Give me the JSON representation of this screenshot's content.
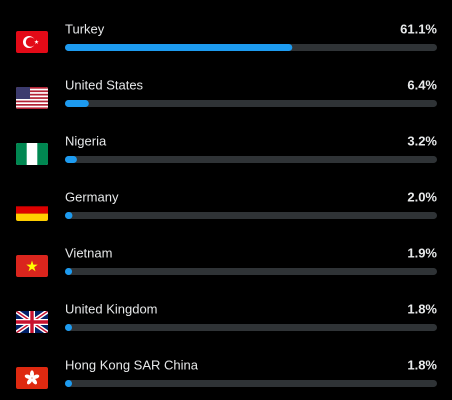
{
  "chart_data": {
    "type": "bar",
    "categories": [
      "Turkey",
      "United States",
      "Nigeria",
      "Germany",
      "Vietnam",
      "United Kingdom",
      "Hong Kong SAR China"
    ],
    "values": [
      61.1,
      6.4,
      3.2,
      2.0,
      1.9,
      1.8,
      1.8
    ],
    "value_labels": [
      "61.1%",
      "6.4%",
      "3.2%",
      "2.0%",
      "1.9%",
      "1.8%",
      "1.8%"
    ],
    "xlim": [
      0,
      100
    ],
    "color": "#1d9bf0"
  }
}
